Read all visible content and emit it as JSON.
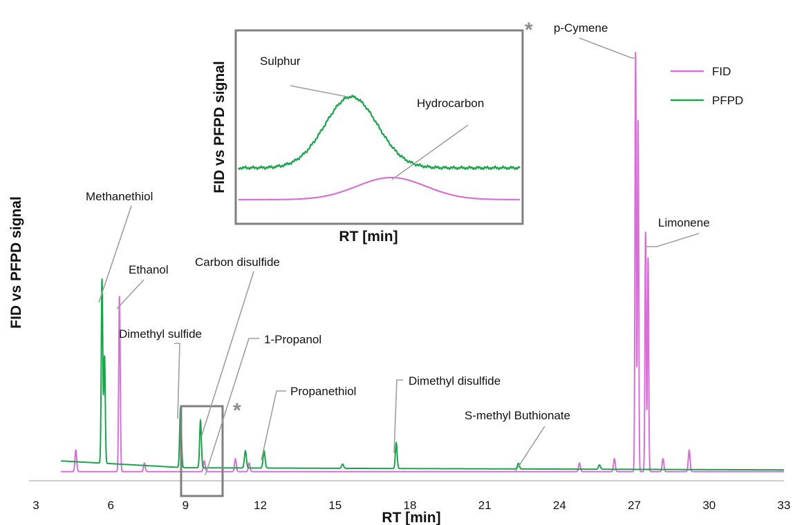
{
  "chart_data": {
    "type": "line",
    "xlabel": "RT [min]",
    "ylabel": "FID vs PFPD signal",
    "xlim": [
      3,
      33
    ],
    "x_ticks": [
      "3",
      "6",
      "9",
      "12",
      "15",
      "18",
      "21",
      "24",
      "27",
      "30",
      "33"
    ],
    "ylim": [
      0,
      100
    ],
    "grid": false,
    "legend_position": "top-right",
    "colors": {
      "FID": "#d670d6",
      "PFPD": "#1aa34a",
      "leader": "#9e9e9e",
      "box": "#7f7f7f",
      "asterisk": "#8c8c8c"
    },
    "series": [
      {
        "name": "FID",
        "color": "#d670d6",
        "baseline": 1.5,
        "peaks": [
          {
            "x": 4.6,
            "height": 5,
            "width": 0.035
          },
          {
            "x": 6.35,
            "height": 41,
            "width": 0.03
          },
          {
            "x": 7.35,
            "height": 2,
            "width": 0.035
          },
          {
            "x": 9.75,
            "height": 2.5,
            "width": 0.035
          },
          {
            "x": 11.0,
            "height": 3,
            "width": 0.035
          },
          {
            "x": 11.55,
            "height": 2,
            "width": 0.035
          },
          {
            "x": 24.8,
            "height": 2,
            "width": 0.035
          },
          {
            "x": 26.2,
            "height": 3,
            "width": 0.035
          },
          {
            "x": 27.05,
            "height": 98,
            "width": 0.025
          },
          {
            "x": 27.15,
            "height": 82,
            "width": 0.025
          },
          {
            "x": 27.45,
            "height": 56,
            "width": 0.025
          },
          {
            "x": 27.55,
            "height": 50,
            "width": 0.025
          },
          {
            "x": 28.15,
            "height": 3,
            "width": 0.035
          },
          {
            "x": 29.2,
            "height": 5,
            "width": 0.035
          }
        ]
      },
      {
        "name": "PFPD",
        "color": "#1aa34a",
        "baseline_start": [
          4.0,
          4.0
        ],
        "baseline_mid": [
          9.0,
          2.4
        ],
        "baseline_end": [
          33.0,
          1.9
        ],
        "peaks": [
          {
            "x": 5.65,
            "height": 43,
            "width": 0.03
          },
          {
            "x": 5.75,
            "height": 25,
            "width": 0.03
          },
          {
            "x": 8.8,
            "height": 14,
            "width": 0.035
          },
          {
            "x": 9.6,
            "height": 11,
            "width": 0.035
          },
          {
            "x": 11.4,
            "height": 4,
            "width": 0.04
          },
          {
            "x": 12.15,
            "height": 4,
            "width": 0.04
          },
          {
            "x": 15.3,
            "height": 1,
            "width": 0.04
          },
          {
            "x": 17.45,
            "height": 6,
            "width": 0.035
          },
          {
            "x": 22.35,
            "height": 1.3,
            "width": 0.04
          },
          {
            "x": 25.6,
            "height": 1,
            "width": 0.04
          }
        ]
      }
    ],
    "annotations": [
      {
        "label": "Methanethiol",
        "peak_x": 5.65
      },
      {
        "label": "Ethanol",
        "peak_x": 6.35
      },
      {
        "label": "Carbon disulfide",
        "peak_x": 9.6
      },
      {
        "label": "Dimethyl sulfide",
        "peak_x": 8.8
      },
      {
        "label": "1-Propanol",
        "peak_x": 9.75
      },
      {
        "label": "Propanethiol",
        "peak_x": 12.15
      },
      {
        "label": "Dimethyl disulfide",
        "peak_x": 17.45
      },
      {
        "label": "S-methyl Buthionate",
        "peak_x": 22.35
      },
      {
        "label": "p-Cymene",
        "peak_x": 27.05
      },
      {
        "label": "Limonene",
        "peak_x": 27.45
      }
    ],
    "asterisks": [
      "*",
      "*"
    ],
    "zoom_box_x": [
      9.0,
      10.6
    ],
    "inset": {
      "xlabel": "RT [min]",
      "ylabel": "FID vs PFPD signal",
      "labels": {
        "sulphur": "Sulphur",
        "hydrocarbon": "Hydrocarbon"
      }
    }
  }
}
